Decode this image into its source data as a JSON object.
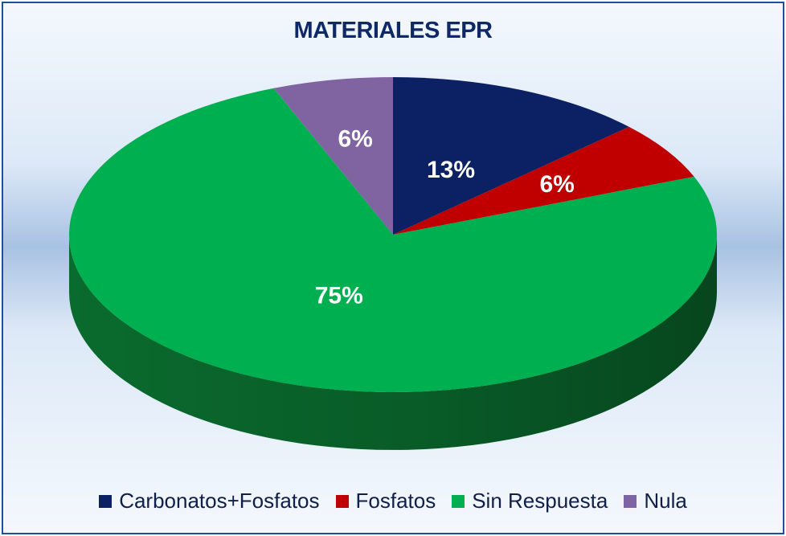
{
  "chart_data": {
    "type": "pie",
    "title": "MATERIALES EPR",
    "categories": [
      "Carbonatos+Fosfatos",
      "Fosfatos",
      "Sin Respuesta",
      "Nula"
    ],
    "values": [
      13,
      6,
      75,
      6
    ],
    "labels": [
      "13%",
      "6%",
      "75%",
      "6%"
    ],
    "colors": [
      "#0c2163",
      "#c00000",
      "#00b050",
      "#8064a2"
    ],
    "side_colors": [
      "#071540",
      "#7a0000",
      "#0a6b2e",
      "#4f3d68"
    ],
    "legend_position": "bottom",
    "style": "3d"
  }
}
